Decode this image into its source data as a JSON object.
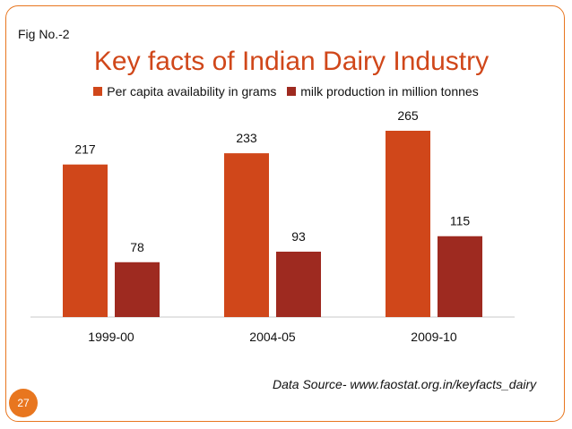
{
  "slide": {
    "fig_label": "Fig No.-2",
    "source": "Data Source- www.faostat.org.in/keyfacts_dairy",
    "page_number": "27"
  },
  "colors": {
    "frame": "#e8761f",
    "title": "#d0471a",
    "series1": "#d0471a",
    "series2": "#9e2a20"
  },
  "chart_data": {
    "type": "bar",
    "title": "Key facts of Indian Dairy Industry",
    "categories": [
      "1999-00",
      "2004-05",
      "2009-10"
    ],
    "series": [
      {
        "name": "Per capita availability in grams",
        "values": [
          217,
          233,
          265
        ]
      },
      {
        "name": "milk production in million tonnes",
        "values": [
          78,
          93,
          115
        ]
      }
    ],
    "ylim": [
      0,
      300
    ],
    "legend": "top",
    "grid": false
  }
}
